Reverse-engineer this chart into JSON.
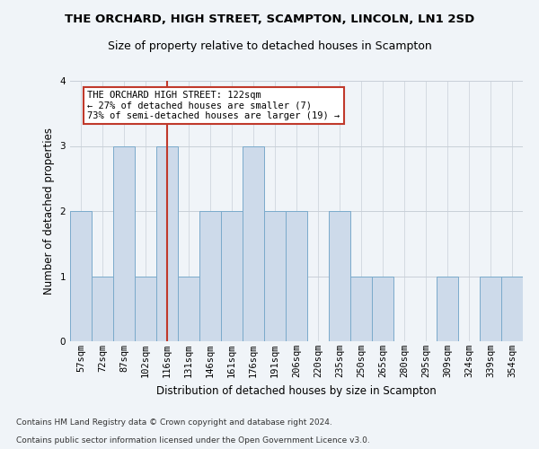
{
  "title": "THE ORCHARD, HIGH STREET, SCAMPTON, LINCOLN, LN1 2SD",
  "subtitle": "Size of property relative to detached houses in Scampton",
  "xlabel": "Distribution of detached houses by size in Scampton",
  "ylabel": "Number of detached properties",
  "categories": [
    "57sqm",
    "72sqm",
    "87sqm",
    "102sqm",
    "116sqm",
    "131sqm",
    "146sqm",
    "161sqm",
    "176sqm",
    "191sqm",
    "206sqm",
    "220sqm",
    "235sqm",
    "250sqm",
    "265sqm",
    "280sqm",
    "295sqm",
    "309sqm",
    "324sqm",
    "339sqm",
    "354sqm"
  ],
  "values": [
    2,
    1,
    3,
    1,
    3,
    1,
    2,
    2,
    3,
    2,
    2,
    0,
    2,
    1,
    1,
    0,
    0,
    1,
    0,
    1,
    1
  ],
  "bar_color": "#cddaea",
  "bar_edge_color": "#7aaacb",
  "highlight_line_index": 4,
  "highlight_line_color": "#c0392b",
  "ylim": [
    0,
    4
  ],
  "yticks": [
    0,
    1,
    2,
    3,
    4
  ],
  "annotation_line1": "THE ORCHARD HIGH STREET: 122sqm",
  "annotation_line2": "← 27% of detached houses are smaller (7)",
  "annotation_line3": "73% of semi-detached houses are larger (19) →",
  "annotation_box_color": "#ffffff",
  "annotation_box_edge": "#c0392b",
  "footer1": "Contains HM Land Registry data © Crown copyright and database right 2024.",
  "footer2": "Contains public sector information licensed under the Open Government Licence v3.0.",
  "background_color": "#f0f4f8",
  "grid_color": "#c8cfd8",
  "title_fontsize": 9.5,
  "subtitle_fontsize": 9.0,
  "ylabel_fontsize": 8.5,
  "xlabel_fontsize": 8.5,
  "tick_fontsize": 7.5,
  "footer_fontsize": 6.5,
  "annotation_fontsize": 7.5
}
